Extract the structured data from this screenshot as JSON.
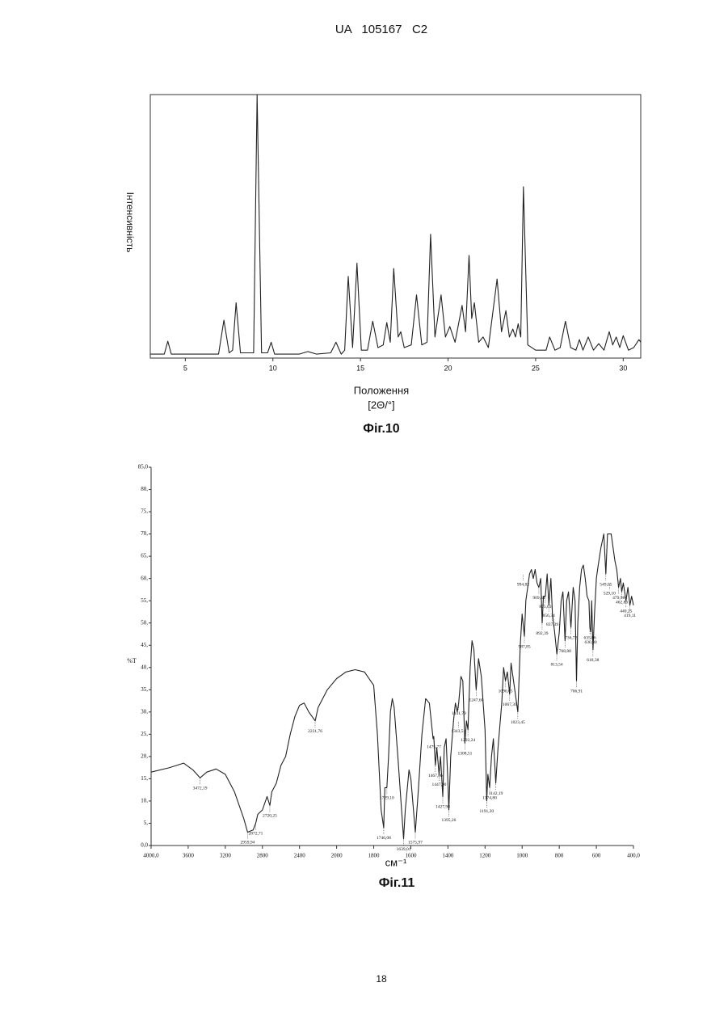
{
  "header": "UA   105167   C2",
  "page_number": "18",
  "chart_data": [
    {
      "type": "line",
      "y_label": "Інтенсивність",
      "x_label": "Положення",
      "x_unit": "[2Θ/°]",
      "caption": "Фіг.10",
      "color": "#222222",
      "xlim": [
        3,
        31
      ],
      "ylim": [
        0,
        100
      ],
      "xticks": [
        5,
        10,
        15,
        20,
        25,
        30
      ],
      "x": [
        3.0,
        3.8,
        4.0,
        4.2,
        6.9,
        7.2,
        7.5,
        7.7,
        7.9,
        8.15,
        8.9,
        9.1,
        9.35,
        9.7,
        9.9,
        10.1,
        11.5,
        12.0,
        12.5,
        13.3,
        13.6,
        13.9,
        14.1,
        14.3,
        14.55,
        14.8,
        15.05,
        15.4,
        15.7,
        16.0,
        16.3,
        16.5,
        16.7,
        16.9,
        17.15,
        17.3,
        17.5,
        17.9,
        18.2,
        18.5,
        18.8,
        19.0,
        19.25,
        19.6,
        19.85,
        20.1,
        20.4,
        20.8,
        21.0,
        21.2,
        21.35,
        21.5,
        21.75,
        22.0,
        22.3,
        22.8,
        23.05,
        23.3,
        23.5,
        23.7,
        23.85,
        24.0,
        24.15,
        24.3,
        24.55,
        25.0,
        25.6,
        25.8,
        26.1,
        26.4,
        26.7,
        27.0,
        27.3,
        27.5,
        27.7,
        28.0,
        28.3,
        28.6,
        28.9,
        29.2,
        29.4,
        29.6,
        29.8,
        30.0,
        30.3,
        30.6,
        30.9,
        31.0
      ],
      "values": [
        1.5,
        1.5,
        6.4,
        1.5,
        1.5,
        14.4,
        2,
        3,
        21,
        2,
        2,
        100,
        2,
        2,
        6,
        1.5,
        1.5,
        2.5,
        1.5,
        2,
        6,
        1.5,
        3,
        31,
        4,
        36,
        3,
        3,
        14,
        4,
        5,
        13.5,
        6,
        34,
        8,
        10,
        4,
        5,
        24,
        5,
        6,
        47,
        8,
        24,
        8,
        12,
        6,
        20,
        10,
        39,
        15,
        21,
        6,
        8,
        4,
        30,
        10,
        18,
        8,
        11,
        8,
        13,
        8,
        65,
        5,
        3,
        3,
        8,
        3,
        4,
        14,
        4,
        3,
        7,
        3,
        8,
        3,
        5.5,
        3,
        10,
        5,
        8,
        4,
        8.5,
        3,
        4,
        7,
        6
      ]
    },
    {
      "type": "line",
      "y_label": "%T",
      "x_label": "см⁻¹",
      "caption": "Фіг.11",
      "color": "#222222",
      "xscale": "piecewise",
      "xlim": [
        4000,
        400
      ],
      "ylim": [
        0,
        85
      ],
      "xticks": [
        {
          "value": 4000,
          "label": "4000,0"
        },
        3600,
        3200,
        2800,
        2400,
        2000,
        1800,
        1600,
        1400,
        1200,
        1000,
        800,
        600,
        {
          "value": 400,
          "label": "400,0"
        }
      ],
      "yticks": [
        {
          "value": 0,
          "label": "0,0"
        },
        {
          "value": 5,
          "label": "5,"
        },
        {
          "value": 10,
          "label": "10,"
        },
        {
          "value": 15,
          "label": "15,"
        },
        {
          "value": 20,
          "label": "20,"
        },
        {
          "value": 25,
          "label": "25,"
        },
        {
          "value": 30,
          "label": "30,"
        },
        {
          "value": 35,
          "label": "35,"
        },
        {
          "value": 40,
          "label": "40,"
        },
        {
          "value": 45,
          "label": "45,"
        },
        {
          "value": 50,
          "label": "50,"
        },
        {
          "value": 55,
          "label": "55,"
        },
        {
          "value": 60,
          "label": "60,"
        },
        {
          "value": 65,
          "label": "65,"
        },
        {
          "value": 70,
          "label": "70,"
        },
        {
          "value": 75,
          "label": "75,"
        },
        {
          "value": 80,
          "label": "80,"
        },
        {
          "value": 85,
          "label": "85,0"
        }
      ],
      "x": [
        4000,
        3800,
        3650,
        3550,
        3472,
        3400,
        3300,
        3200,
        3100,
        3000,
        2960,
        2900,
        2872,
        2850,
        2800,
        2750,
        2720,
        2700,
        2650,
        2600,
        2550,
        2500,
        2450,
        2400,
        2350,
        2300,
        2231,
        2200,
        2100,
        2000,
        1950,
        1900,
        1850,
        1800,
        1780,
        1760,
        1746,
        1740,
        1729,
        1720,
        1710,
        1700,
        1690,
        1670,
        1650,
        1639,
        1630,
        1610,
        1600,
        1590,
        1576,
        1560,
        1540,
        1520,
        1500,
        1480,
        1476,
        1468,
        1460,
        1448,
        1440,
        1428,
        1420,
        1410,
        1400,
        1395,
        1385,
        1370,
        1360,
        1350,
        1342,
        1330,
        1320,
        1309,
        1300,
        1292,
        1280,
        1270,
        1260,
        1248,
        1235,
        1220,
        1200,
        1191,
        1185,
        1175,
        1165,
        1155,
        1142,
        1130,
        1110,
        1100,
        1090,
        1080,
        1067,
        1060,
        1050,
        1023,
        1010,
        1000,
        988,
        980,
        960,
        950,
        940,
        930,
        920,
        910,
        900,
        892,
        885,
        875,
        865,
        856,
        845,
        837,
        825,
        813,
        800,
        790,
        780,
        769,
        760,
        750,
        737,
        725,
        715,
        707,
        700,
        690,
        680,
        670,
        660,
        650,
        640,
        635,
        630,
        625,
        618,
        610,
        600,
        590,
        575,
        560,
        549,
        540,
        520,
        510,
        500,
        490,
        480,
        470,
        463,
        455,
        440,
        430,
        419,
        410,
        400
      ],
      "values": [
        16.5,
        17.5,
        18.5,
        17,
        15.2,
        16.5,
        17.2,
        16,
        12,
        6,
        3,
        3.5,
        5,
        7,
        8,
        11,
        9,
        12,
        14,
        18,
        20,
        25,
        29,
        31.5,
        32,
        30,
        28,
        31,
        35,
        37.5,
        39,
        39.5,
        39,
        36,
        25,
        8,
        4,
        13,
        13,
        20,
        30,
        33,
        31,
        20,
        8,
        1.5,
        8,
        17,
        15,
        10,
        3,
        12,
        25,
        33,
        32,
        24,
        24.5,
        18,
        22,
        16,
        20,
        11,
        22,
        24,
        14,
        8,
        20,
        28,
        32,
        30,
        32,
        38,
        37,
        23,
        28,
        26,
        40,
        46,
        44,
        35,
        42,
        38,
        26,
        10,
        16,
        13,
        20,
        24,
        14,
        22,
        32,
        40,
        37,
        39,
        34,
        41,
        38,
        30,
        45,
        52,
        47,
        55,
        61,
        62,
        60,
        62,
        59,
        58,
        60,
        50,
        56,
        56,
        61,
        54,
        60,
        52,
        48,
        43,
        48,
        55,
        57,
        46,
        55,
        57,
        49,
        58,
        55,
        37,
        50,
        58,
        62,
        63,
        60,
        56,
        55,
        49,
        48,
        55,
        44,
        52,
        60,
        63,
        67,
        70,
        61,
        70,
        70,
        67,
        64,
        62,
        58,
        60,
        57,
        59,
        55,
        58,
        54,
        56,
        54
      ],
      "annotations": [
        {
          "x": 3472.19,
          "y": 15.2,
          "label": "3472,19"
        },
        {
          "x": 2959.94,
          "y": 3,
          "label": "2959,94"
        },
        {
          "x": 2872.71,
          "y": 5,
          "label": "2872,71"
        },
        {
          "x": 2720.25,
          "y": 9,
          "label": "2720,25"
        },
        {
          "x": 2231.76,
          "y": 28,
          "label": "2231,76"
        },
        {
          "x": 1746.08,
          "y": 4,
          "label": "1746,08"
        },
        {
          "x": 1729.1,
          "y": 13,
          "label": "1729,10"
        },
        {
          "x": 1639.01,
          "y": 1.5,
          "label": "1639,01"
        },
        {
          "x": 1575.97,
          "y": 3,
          "label": "1575,97"
        },
        {
          "x": 1475.77,
          "y": 24.5,
          "label": "1475,77"
        },
        {
          "x": 1467.86,
          "y": 18,
          "label": "1467,86"
        },
        {
          "x": 1447.9,
          "y": 16,
          "label": "1447,90"
        },
        {
          "x": 1427.98,
          "y": 11,
          "label": "1427,98"
        },
        {
          "x": 1395.26,
          "y": 8,
          "label": "1395,26"
        },
        {
          "x": 1341.79,
          "y": 32,
          "label": "1341,79"
        },
        {
          "x": 1343.51,
          "y": 28,
          "label": "1343,51"
        },
        {
          "x": 1308.51,
          "y": 23,
          "label": "1308,51"
        },
        {
          "x": 1292.24,
          "y": 26,
          "label": "1292,24"
        },
        {
          "x": 1247.6,
          "y": 35,
          "label": "1247,60"
        },
        {
          "x": 1191.2,
          "y": 10,
          "label": "1191,20"
        },
        {
          "x": 1174.8,
          "y": 13,
          "label": "1174,80"
        },
        {
          "x": 1142.19,
          "y": 14,
          "label": "1142,19"
        },
        {
          "x": 1090.05,
          "y": 37,
          "label": "1090,05"
        },
        {
          "x": 1067.3,
          "y": 34,
          "label": "1067,30"
        },
        {
          "x": 1023.45,
          "y": 30,
          "label": "1023,45"
        },
        {
          "x": 987.85,
          "y": 47,
          "label": "987,85"
        },
        {
          "x": 994.82,
          "y": 61,
          "label": "994,82"
        },
        {
          "x": 909.84,
          "y": 58,
          "label": "909,84"
        },
        {
          "x": 875.03,
          "y": 56,
          "label": "875,03"
        },
        {
          "x": 856.34,
          "y": 54,
          "label": "856,34"
        },
        {
          "x": 837.39,
          "y": 52,
          "label": "837,39"
        },
        {
          "x": 892.39,
          "y": 50,
          "label": "892,39"
        },
        {
          "x": 813.54,
          "y": 43,
          "label": "813,54"
        },
        {
          "x": 768.88,
          "y": 46,
          "label": "768,88"
        },
        {
          "x": 736.72,
          "y": 49,
          "label": "736,72"
        },
        {
          "x": 706.91,
          "y": 37,
          "label": "706,91"
        },
        {
          "x": 635.06,
          "y": 49,
          "label": "635,06"
        },
        {
          "x": 630.3,
          "y": 48,
          "label": "630,30"
        },
        {
          "x": 618.38,
          "y": 44,
          "label": "618,38"
        },
        {
          "x": 549.05,
          "y": 61,
          "label": "549,05"
        },
        {
          "x": 529.1,
          "y": 59,
          "label": "529,10"
        },
        {
          "x": 479.98,
          "y": 58,
          "label": "479,98"
        },
        {
          "x": 462.86,
          "y": 57,
          "label": "462,86"
        },
        {
          "x": 440.25,
          "y": 55,
          "label": "440,25"
        },
        {
          "x": 419.11,
          "y": 54,
          "label": "419,11"
        }
      ]
    }
  ]
}
